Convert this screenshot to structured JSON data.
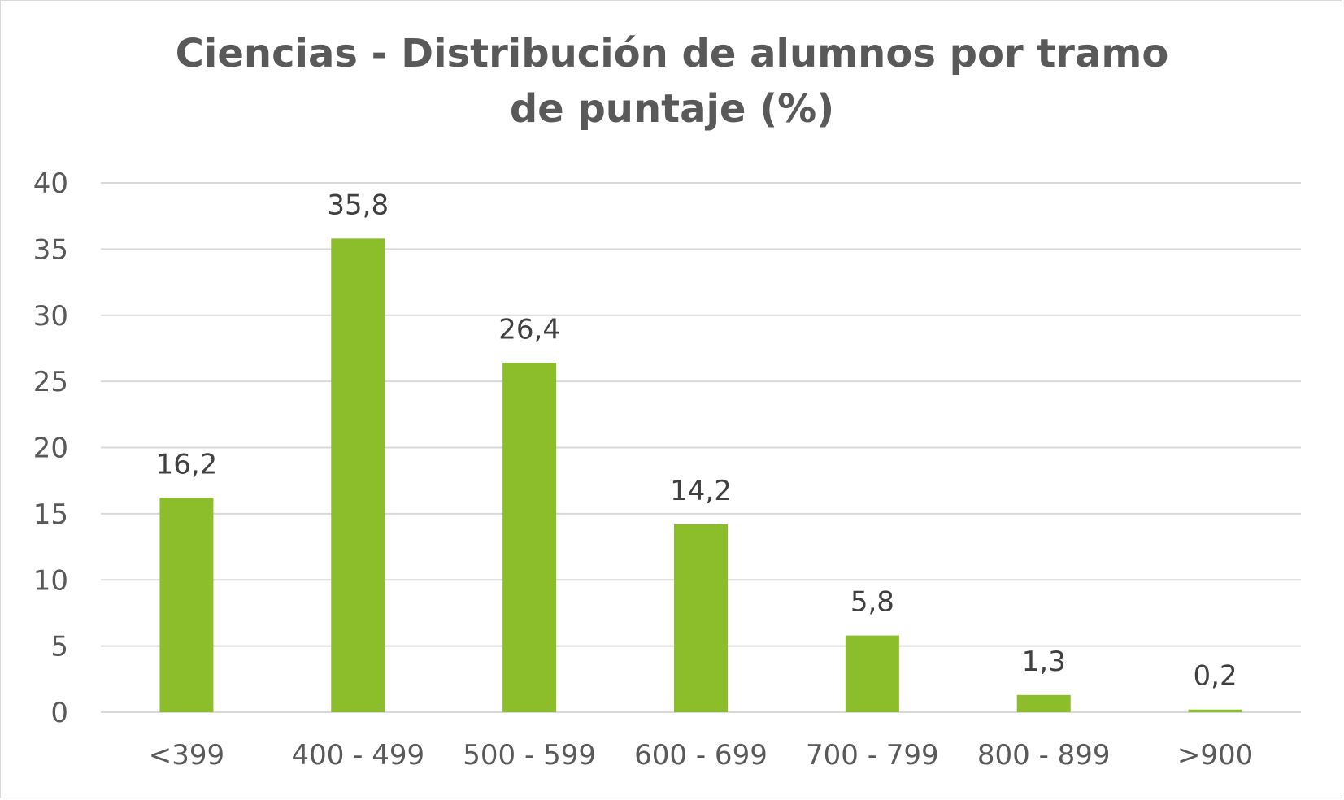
{
  "chart_data": {
    "type": "bar",
    "title_lines": [
      "Ciencias - Distribución de alumnos por tramo",
      "de puntaje (%)"
    ],
    "categories": [
      "<399",
      "400 - 499",
      "500 - 599",
      "600 - 699",
      "700 - 799",
      "800 - 899",
      ">900"
    ],
    "values": [
      16.2,
      35.8,
      26.4,
      14.2,
      5.8,
      1.3,
      0.2
    ],
    "data_labels": [
      "16,2",
      "35,8",
      "26,4",
      "14,2",
      "5,8",
      "1,3",
      "0,2"
    ],
    "ylim": [
      0,
      40
    ],
    "yticks": [
      0,
      5,
      10,
      15,
      20,
      25,
      30,
      35,
      40
    ],
    "grid": true,
    "legend": "none",
    "colors": {
      "bar": "#8cbd2b",
      "grid": "#d9d9d9",
      "axis_text": "#595959",
      "label_text": "#404040",
      "title": "#595959"
    }
  }
}
